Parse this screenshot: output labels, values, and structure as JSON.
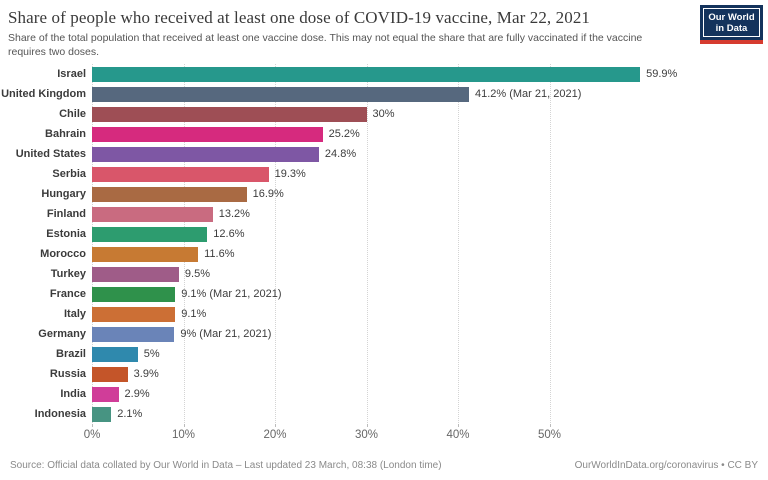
{
  "header": {
    "title": "Share of people who received at least one dose of COVID-19 vaccine, Mar 22, 2021",
    "subtitle": "Share of the total population that received at least one vaccine dose. This may not equal the share that are fully vaccinated if the vaccine requires two doses."
  },
  "logo": {
    "line1": "Our World",
    "line2": "in Data",
    "bg_color": "#14335C",
    "accent_color": "#D63B2F"
  },
  "chart_data": {
    "type": "bar",
    "orientation": "horizontal",
    "title": "Share of people who received at least one dose of COVID-19 vaccine, Mar 22, 2021",
    "categories": [
      "Israel",
      "United Kingdom",
      "Chile",
      "Bahrain",
      "United States",
      "Serbia",
      "Hungary",
      "Finland",
      "Estonia",
      "Morocco",
      "Turkey",
      "France",
      "Italy",
      "Germany",
      "Brazil",
      "Russia",
      "India",
      "Indonesia"
    ],
    "values": [
      59.9,
      41.2,
      30,
      25.2,
      24.8,
      19.3,
      16.9,
      13.2,
      12.6,
      11.6,
      9.5,
      9.1,
      9.1,
      9,
      5,
      3.9,
      2.9,
      2.1
    ],
    "value_labels": [
      "59.9%",
      "41.2% (Mar 21, 2021)",
      "30%",
      "25.2%",
      "24.8%",
      "19.3%",
      "16.9%",
      "13.2%",
      "12.6%",
      "11.6%",
      "9.5%",
      "9.1% (Mar 21, 2021)",
      "9.1%",
      "9% (Mar 21, 2021)",
      "5%",
      "3.9%",
      "2.9%",
      "2.1%"
    ],
    "bar_colors": [
      "#26988C",
      "#56687E",
      "#9E4E55",
      "#D62A7E",
      "#7E57A4",
      "#D9566A",
      "#A96A43",
      "#C96B80",
      "#2D9C6F",
      "#C77A33",
      "#9F5C88",
      "#2F914B",
      "#CC6F35",
      "#6A84B8",
      "#2F89AD",
      "#C45529",
      "#D03D99",
      "#479482"
    ],
    "x_tick_labels": [
      "0%",
      "10%",
      "20%",
      "30%",
      "40%",
      "50%"
    ],
    "x_tick_values": [
      0,
      10,
      20,
      30,
      40,
      50
    ],
    "xlim": [
      0,
      71
    ],
    "xlabel": "",
    "ylabel": "",
    "grid": "vertical-dotted",
    "legend": "none"
  },
  "footer": {
    "source": "Source: Official data collated by Our World in Data – Last updated 23 March, 08:38 (London time)",
    "link": "OurWorldInData.org/coronavirus",
    "separator": " • ",
    "license": "CC BY"
  }
}
